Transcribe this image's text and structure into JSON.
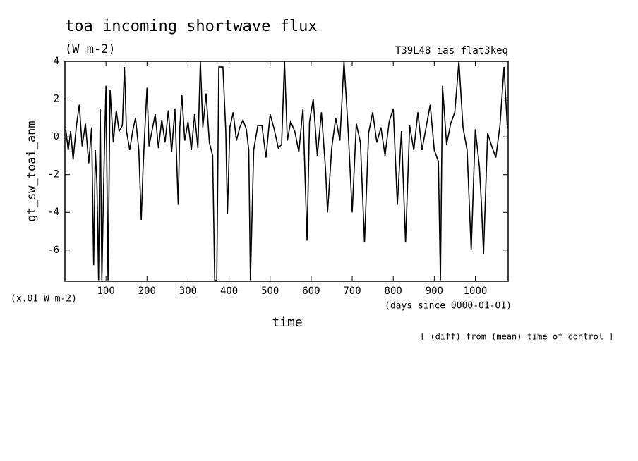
{
  "chart_data": {
    "type": "line",
    "title": "toa incoming shortwave flux",
    "subtitle": "(W m-2)",
    "run_label": "T39L48_ias_flat3keq",
    "y_label": "gt_sw_toai_anm",
    "y_unit": "(x.01 W m-2)",
    "x_unit": "(days since 0000-01-01)",
    "x_label": "time",
    "note": "[ (diff) from (mean) time of control ]",
    "color": "#000000",
    "xlim": [
      0,
      1080
    ],
    "ylim": [
      -7.65,
      4
    ],
    "xticks": [
      100,
      200,
      300,
      400,
      500,
      600,
      700,
      800,
      900,
      1000
    ],
    "yticks": [
      -6,
      -4,
      -2,
      0,
      2,
      4
    ],
    "x": [
      2,
      8,
      14,
      20,
      28,
      35,
      42,
      50,
      58,
      65,
      70,
      74,
      78,
      82,
      86,
      90,
      95,
      100,
      105,
      110,
      118,
      125,
      132,
      140,
      145,
      150,
      158,
      165,
      172,
      180,
      186,
      190,
      195,
      200,
      205,
      212,
      220,
      228,
      236,
      244,
      252,
      260,
      268,
      276,
      280,
      285,
      292,
      300,
      308,
      316,
      324,
      330,
      336,
      344,
      352,
      360,
      365,
      370,
      375,
      385,
      392,
      396,
      402,
      410,
      418,
      426,
      434,
      442,
      448,
      452,
      460,
      470,
      480,
      490,
      500,
      510,
      520,
      528,
      535,
      542,
      550,
      560,
      570,
      580,
      590,
      596,
      605,
      615,
      625,
      635,
      640,
      650,
      660,
      670,
      680,
      690,
      700,
      710,
      720,
      730,
      740,
      750,
      760,
      770,
      780,
      790,
      800,
      810,
      820,
      830,
      840,
      850,
      860,
      870,
      880,
      890,
      900,
      910,
      915,
      920,
      930,
      940,
      950,
      960,
      970,
      980,
      990,
      1000,
      1010,
      1015,
      1020,
      1030,
      1040,
      1050,
      1060,
      1070,
      1078
    ],
    "values": [
      0.4,
      -0.7,
      0.3,
      -1.2,
      0.6,
      1.7,
      -0.5,
      0.7,
      -1.4,
      0.5,
      -6.8,
      -0.7,
      -2.5,
      -7.6,
      1.5,
      -7.6,
      -1.9,
      2.7,
      -7.6,
      2.5,
      -0.3,
      1.4,
      0.3,
      0.6,
      3.7,
      0.3,
      -0.7,
      0.3,
      1.0,
      -0.7,
      -4.4,
      -1.9,
      0.5,
      2.6,
      -0.5,
      0.3,
      1.2,
      -0.6,
      0.9,
      -0.3,
      1.4,
      -0.8,
      1.5,
      -3.6,
      0.5,
      2.2,
      -0.2,
      0.8,
      -0.7,
      1.2,
      -0.6,
      4.0,
      0.5,
      2.3,
      -0.3,
      -1.0,
      -7.6,
      -7.6,
      3.7,
      3.7,
      0.3,
      -4.1,
      0.5,
      1.3,
      -0.2,
      0.5,
      0.9,
      0.4,
      -0.7,
      -7.6,
      -0.7,
      0.6,
      0.6,
      -1.1,
      1.2,
      0.4,
      -0.6,
      -0.4,
      4.0,
      -0.2,
      0.8,
      0.3,
      -0.8,
      1.5,
      -5.5,
      0.8,
      2.0,
      -1.0,
      1.3,
      -1.7,
      -4.0,
      -0.6,
      1.0,
      -0.2,
      4.0,
      0.4,
      -4.0,
      0.7,
      -0.3,
      -5.6,
      0.2,
      1.3,
      -0.3,
      0.5,
      -1.0,
      0.8,
      1.5,
      -3.6,
      0.3,
      -5.6,
      0.6,
      -0.7,
      1.3,
      -0.7,
      0.5,
      1.7,
      -0.7,
      -1.3,
      -7.6,
      2.7,
      -0.4,
      0.7,
      1.3,
      4.0,
      0.5,
      -0.7,
      -6.0,
      0.4,
      -1.6,
      -3.6,
      -6.2,
      0.2,
      -0.5,
      -1.1,
      0.6,
      3.7,
      0.5
    ]
  }
}
